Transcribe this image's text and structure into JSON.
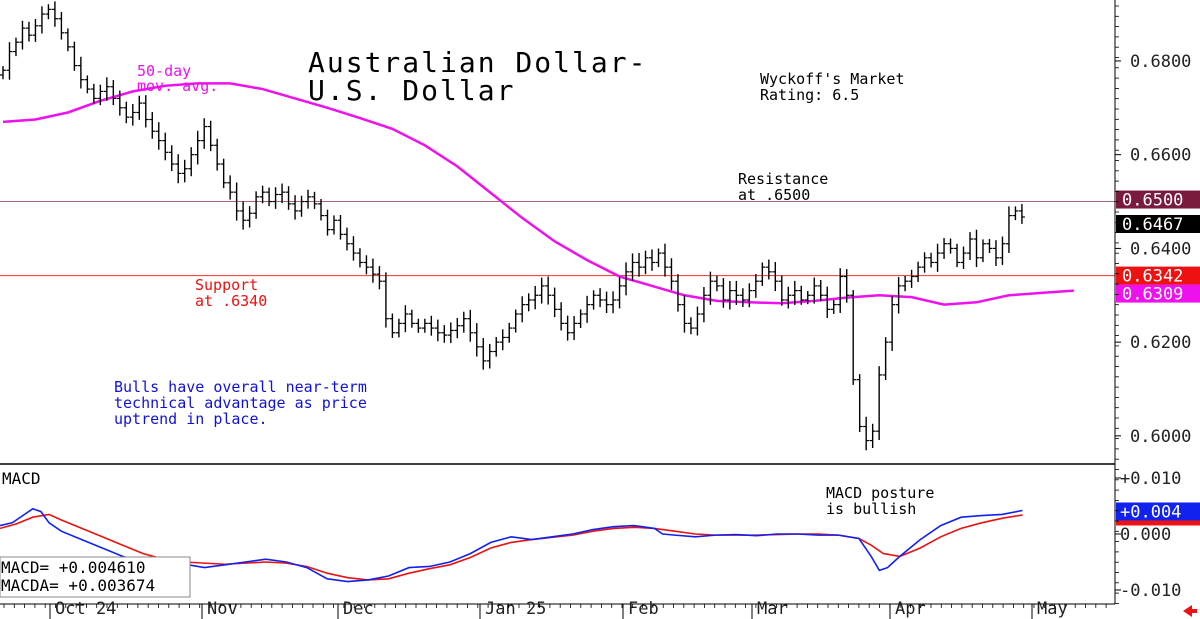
{
  "chart_data": [
    {
      "type": "ohlc",
      "title": "Australian Dollar-\nU.S. Dollar",
      "rating": "Wyckoff's Market\nRating: 6.5",
      "ylim": [
        0.594,
        0.693
      ],
      "y_ticks": [
        "0.6800",
        "0.6600",
        "0.6400",
        "0.6200",
        "0.6000"
      ],
      "x_tick_labels": [
        "Oct 24",
        "Nov",
        "Dec",
        "Jan 25",
        "Feb",
        "Mar",
        "Apr",
        "May"
      ],
      "resistance": {
        "value": 0.65,
        "label": "Resistance\nat .6500",
        "badge": "0.6500",
        "color": "#8b1a3c"
      },
      "support": {
        "value": 0.6342,
        "label": "Support\nat .6340",
        "badge": "0.6342",
        "color": "#ee1111"
      },
      "last_price": {
        "value": 0.6467,
        "badge": "0.6467"
      },
      "moving_average": {
        "name": "50-day\nmov. avg.",
        "color": "#ee11ee",
        "last_badge": "0.6309",
        "values": [
          [
            0,
            0.667
          ],
          [
            5,
            0.6675
          ],
          [
            10,
            0.669
          ],
          [
            15,
            0.6715
          ],
          [
            20,
            0.6735
          ],
          [
            25,
            0.6747
          ],
          [
            30,
            0.6752
          ],
          [
            35,
            0.6752
          ],
          [
            40,
            0.674
          ],
          [
            45,
            0.672
          ],
          [
            50,
            0.67
          ],
          [
            55,
            0.6678
          ],
          [
            60,
            0.6655
          ],
          [
            65,
            0.662
          ],
          [
            70,
            0.6575
          ],
          [
            75,
            0.652
          ],
          [
            80,
            0.6465
          ],
          [
            85,
            0.6415
          ],
          [
            90,
            0.6375
          ],
          [
            95,
            0.634
          ],
          [
            100,
            0.632
          ],
          [
            105,
            0.63
          ],
          [
            110,
            0.6288
          ],
          [
            115,
            0.6285
          ],
          [
            120,
            0.6283
          ],
          [
            125,
            0.6288
          ],
          [
            130,
            0.6295
          ],
          [
            135,
            0.63
          ],
          [
            140,
            0.6296
          ],
          [
            145,
            0.628
          ],
          [
            150,
            0.6285
          ],
          [
            155,
            0.63
          ],
          [
            160,
            0.6305
          ],
          [
            165,
            0.631
          ]
        ]
      },
      "annotation": "Bulls have overall near-term\ntechnical advantage as price\nuptrend in place.",
      "closes": [
        [
          0,
          0.678
        ],
        [
          1,
          0.682
        ],
        [
          2,
          0.684
        ],
        [
          3,
          0.687
        ],
        [
          4,
          0.6855
        ],
        [
          5,
          0.6875
        ],
        [
          6,
          0.69
        ],
        [
          7,
          0.691
        ],
        [
          8,
          0.689
        ],
        [
          9,
          0.686
        ],
        [
          10,
          0.683
        ],
        [
          11,
          0.679
        ],
        [
          12,
          0.676
        ],
        [
          13,
          0.674
        ],
        [
          14,
          0.672
        ],
        [
          15,
          0.6735
        ],
        [
          16,
          0.6745
        ],
        [
          17,
          0.672
        ],
        [
          18,
          0.67
        ],
        [
          19,
          0.668
        ],
        [
          20,
          0.669
        ],
        [
          21,
          0.671
        ],
        [
          22,
          0.6675
        ],
        [
          23,
          0.665
        ],
        [
          24,
          0.663
        ],
        [
          25,
          0.6605
        ],
        [
          26,
          0.658
        ],
        [
          27,
          0.656
        ],
        [
          28,
          0.657
        ],
        [
          29,
          0.66
        ],
        [
          30,
          0.663
        ],
        [
          31,
          0.666
        ],
        [
          32,
          0.662
        ],
        [
          33,
          0.658
        ],
        [
          34,
          0.654
        ],
        [
          35,
          0.652
        ],
        [
          36,
          0.648
        ],
        [
          37,
          0.646
        ],
        [
          38,
          0.6475
        ],
        [
          39,
          0.651
        ],
        [
          40,
          0.652
        ],
        [
          41,
          0.65
        ],
        [
          42,
          0.6515
        ],
        [
          43,
          0.652
        ],
        [
          44,
          0.6495
        ],
        [
          45,
          0.648
        ],
        [
          46,
          0.65
        ],
        [
          47,
          0.651
        ],
        [
          48,
          0.6495
        ],
        [
          49,
          0.647
        ],
        [
          50,
          0.644
        ],
        [
          51,
          0.646
        ],
        [
          52,
          0.643
        ],
        [
          53,
          0.641
        ],
        [
          54,
          0.639
        ],
        [
          55,
          0.637
        ],
        [
          56,
          0.636
        ],
        [
          57,
          0.6345
        ],
        [
          58,
          0.633
        ],
        [
          59,
          0.625
        ],
        [
          60,
          0.622
        ],
        [
          61,
          0.624
        ],
        [
          62,
          0.626
        ],
        [
          63,
          0.624
        ],
        [
          64,
          0.623
        ],
        [
          65,
          0.624
        ],
        [
          66,
          0.623
        ],
        [
          67,
          0.622
        ],
        [
          68,
          0.6215
        ],
        [
          69,
          0.6225
        ],
        [
          70,
          0.6235
        ],
        [
          71,
          0.625
        ],
        [
          72,
          0.622
        ],
        [
          73,
          0.619
        ],
        [
          74,
          0.616
        ],
        [
          75,
          0.618
        ],
        [
          76,
          0.62
        ],
        [
          77,
          0.621
        ],
        [
          78,
          0.623
        ],
        [
          79,
          0.626
        ],
        [
          80,
          0.628
        ],
        [
          81,
          0.629
        ],
        [
          82,
          0.63
        ],
        [
          83,
          0.632
        ],
        [
          84,
          0.63
        ],
        [
          85,
          0.627
        ],
        [
          86,
          0.624
        ],
        [
          87,
          0.622
        ],
        [
          88,
          0.624
        ],
        [
          89,
          0.626
        ],
        [
          90,
          0.628
        ],
        [
          91,
          0.63
        ],
        [
          92,
          0.629
        ],
        [
          93,
          0.628
        ],
        [
          94,
          0.629
        ],
        [
          95,
          0.632
        ],
        [
          96,
          0.635
        ],
        [
          97,
          0.637
        ],
        [
          98,
          0.636
        ],
        [
          99,
          0.638
        ],
        [
          100,
          0.637
        ],
        [
          101,
          0.639
        ],
        [
          102,
          0.636
        ],
        [
          103,
          0.633
        ],
        [
          104,
          0.628
        ],
        [
          105,
          0.624
        ],
        [
          106,
          0.623
        ],
        [
          107,
          0.626
        ],
        [
          108,
          0.63
        ],
        [
          109,
          0.633
        ],
        [
          110,
          0.632
        ],
        [
          111,
          0.629
        ],
        [
          112,
          0.631
        ],
        [
          113,
          0.63
        ],
        [
          114,
          0.629
        ],
        [
          115,
          0.631
        ],
        [
          116,
          0.633
        ],
        [
          117,
          0.636
        ],
        [
          118,
          0.635
        ],
        [
          119,
          0.633
        ],
        [
          120,
          0.629
        ],
        [
          121,
          0.63
        ],
        [
          122,
          0.631
        ],
        [
          123,
          0.629
        ],
        [
          124,
          0.63
        ],
        [
          125,
          0.632
        ],
        [
          126,
          0.63
        ],
        [
          127,
          0.627
        ],
        [
          128,
          0.628
        ],
        [
          129,
          0.634
        ],
        [
          130,
          0.63
        ],
        [
          131,
          0.612
        ],
        [
          132,
          0.602
        ],
        [
          133,
          0.599
        ],
        [
          134,
          0.601
        ],
        [
          135,
          0.613
        ],
        [
          136,
          0.62
        ],
        [
          137,
          0.628
        ],
        [
          138,
          0.632
        ],
        [
          139,
          0.633
        ],
        [
          140,
          0.634
        ],
        [
          141,
          0.636
        ],
        [
          142,
          0.638
        ],
        [
          143,
          0.637
        ],
        [
          144,
          0.639
        ],
        [
          145,
          0.641
        ],
        [
          146,
          0.64
        ],
        [
          147,
          0.637
        ],
        [
          148,
          0.639
        ],
        [
          149,
          0.642
        ],
        [
          150,
          0.638
        ],
        [
          151,
          0.641
        ],
        [
          152,
          0.64
        ],
        [
          153,
          0.638
        ],
        [
          154,
          0.641
        ],
        [
          155,
          0.647
        ],
        [
          156,
          0.648
        ],
        [
          157,
          0.6467
        ]
      ]
    },
    {
      "type": "line",
      "title": "MACD",
      "ylim": [
        -0.0125,
        0.0125
      ],
      "y_ticks": [
        "+0.010",
        "0.000",
        "-0.010"
      ],
      "annotation": "MACD posture\nis bullish",
      "readout": [
        "MACD=  +0.004610",
        "MACDA= +0.003674"
      ],
      "last_badge": "+0.004",
      "series": [
        {
          "name": "MACD",
          "color": "#1122ee",
          "values": [
            [
              0,
              0.0015
            ],
            [
              3,
              0.002
            ],
            [
              6,
              0.0035
            ],
            [
              8,
              0.0045
            ],
            [
              10,
              0.004
            ],
            [
              12,
              0.002
            ],
            [
              15,
              0.0005
            ],
            [
              20,
              -0.001
            ],
            [
              25,
              -0.0025
            ],
            [
              30,
              -0.004
            ],
            [
              35,
              -0.005
            ],
            [
              38,
              -0.0055
            ],
            [
              42,
              -0.005
            ],
            [
              46,
              -0.0055
            ],
            [
              50,
              -0.006
            ],
            [
              55,
              -0.0055
            ],
            [
              60,
              -0.005
            ],
            [
              65,
              -0.0045
            ],
            [
              70,
              -0.005
            ],
            [
              75,
              -0.006
            ],
            [
              80,
              -0.008
            ],
            [
              85,
              -0.0085
            ],
            [
              90,
              -0.0082
            ],
            [
              95,
              -0.0075
            ],
            [
              100,
              -0.006
            ],
            [
              105,
              -0.0058
            ],
            [
              110,
              -0.005
            ],
            [
              115,
              -0.0035
            ],
            [
              120,
              -0.0015
            ],
            [
              125,
              -0.0005
            ],
            [
              130,
              -0.001
            ],
            [
              135,
              -0.0005
            ],
            [
              140,
              0.0
            ],
            [
              145,
              0.0008
            ],
            [
              150,
              0.0013
            ],
            [
              155,
              0.0015
            ],
            [
              160,
              0.001
            ],
            [
              162,
              0.0
            ],
            [
              165,
              -0.0002
            ],
            [
              170,
              -0.0005
            ],
            [
              175,
              -0.0002
            ],
            [
              180,
              -0.0001
            ],
            [
              185,
              -0.0003
            ],
            [
              190,
              0.0
            ],
            [
              195,
              0.0
            ],
            [
              200,
              -0.0002
            ],
            [
              205,
              -0.0002
            ],
            [
              210,
              -0.0008
            ],
            [
              213,
              -0.004
            ],
            [
              215,
              -0.0065
            ],
            [
              217,
              -0.006
            ],
            [
              220,
              -0.004
            ],
            [
              225,
              -0.001
            ],
            [
              230,
              0.0015
            ],
            [
              235,
              0.003
            ],
            [
              240,
              0.0033
            ],
            [
              245,
              0.0035
            ],
            [
              250,
              0.0042
            ]
          ]
        },
        {
          "name": "MACDA",
          "color": "#ee1111",
          "values": [
            [
              0,
              0.001
            ],
            [
              4,
              0.0018
            ],
            [
              8,
              0.003
            ],
            [
              12,
              0.0035
            ],
            [
              15,
              0.0025
            ],
            [
              20,
              0.001
            ],
            [
              25,
              -0.0005
            ],
            [
              30,
              -0.002
            ],
            [
              35,
              -0.0035
            ],
            [
              40,
              -0.0045
            ],
            [
              45,
              -0.005
            ],
            [
              50,
              -0.0052
            ],
            [
              55,
              -0.0054
            ],
            [
              60,
              -0.0052
            ],
            [
              65,
              -0.005
            ],
            [
              70,
              -0.0052
            ],
            [
              75,
              -0.0058
            ],
            [
              80,
              -0.007
            ],
            [
              85,
              -0.0078
            ],
            [
              90,
              -0.0082
            ],
            [
              95,
              -0.008
            ],
            [
              100,
              -0.007
            ],
            [
              105,
              -0.0062
            ],
            [
              110,
              -0.0055
            ],
            [
              115,
              -0.0042
            ],
            [
              120,
              -0.0025
            ],
            [
              125,
              -0.0015
            ],
            [
              130,
              -0.001
            ],
            [
              135,
              -0.0006
            ],
            [
              140,
              -0.0002
            ],
            [
              145,
              0.0005
            ],
            [
              150,
              0.001
            ],
            [
              155,
              0.0012
            ],
            [
              160,
              0.001
            ],
            [
              165,
              0.0005
            ],
            [
              170,
              0.0
            ],
            [
              175,
              -0.0002
            ],
            [
              180,
              -0.0002
            ],
            [
              185,
              -0.0002
            ],
            [
              190,
              -0.0001
            ],
            [
              195,
              0.0
            ],
            [
              200,
              0.0
            ],
            [
              205,
              -0.0002
            ],
            [
              210,
              -0.0008
            ],
            [
              213,
              -0.002
            ],
            [
              216,
              -0.0035
            ],
            [
              220,
              -0.004
            ],
            [
              225,
              -0.0025
            ],
            [
              230,
              -0.0005
            ],
            [
              235,
              0.001
            ],
            [
              240,
              0.002
            ],
            [
              245,
              0.0028
            ],
            [
              250,
              0.0034
            ]
          ]
        }
      ]
    }
  ]
}
